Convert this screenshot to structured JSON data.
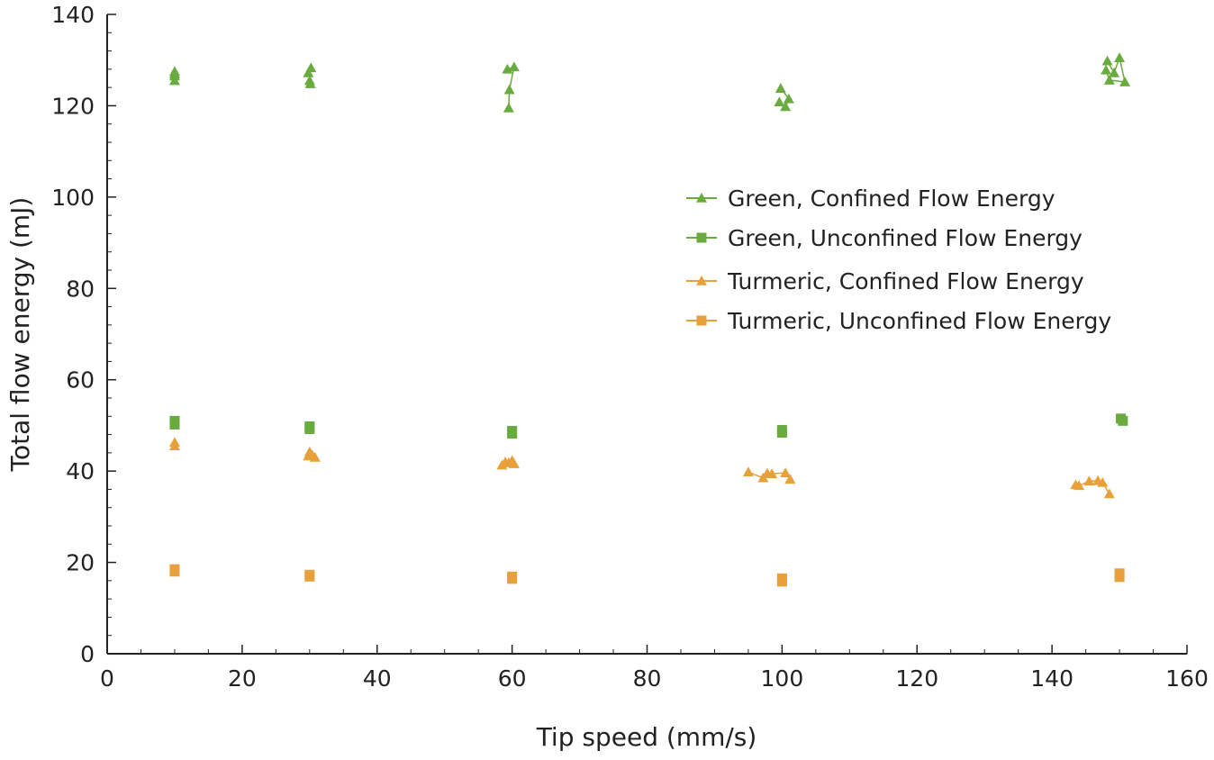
{
  "chart_data": {
    "type": "scatter",
    "title": "",
    "xlabel": "Tip speed (mm/s)",
    "ylabel": "Total flow energy (mJ)",
    "xlim": [
      0,
      160
    ],
    "ylim": [
      0,
      140
    ],
    "x_ticks": [
      "0",
      "20",
      "40",
      "60",
      "80",
      "100",
      "120",
      "140",
      "160"
    ],
    "y_ticks": [
      "0",
      "20",
      "40",
      "60",
      "80",
      "100",
      "120",
      "140"
    ],
    "grid": false,
    "legend_position": "right",
    "series": [
      {
        "name": "Green, Confined Flow Energy",
        "color": "#6aab3f",
        "marker": "triangle",
        "points": [
          [
            10,
            127.5
          ],
          [
            10,
            126.5
          ],
          [
            10,
            125.5
          ],
          [
            10,
            127.0
          ],
          [
            29.8,
            127.2
          ],
          [
            30.2,
            128.3
          ],
          [
            30.0,
            125.5
          ],
          [
            30.1,
            124.8
          ],
          [
            59.3,
            128.0
          ],
          [
            60.3,
            128.5
          ],
          [
            59.6,
            123.5
          ],
          [
            59.5,
            119.5
          ],
          [
            99.8,
            123.8
          ],
          [
            101.0,
            121.5
          ],
          [
            100.5,
            119.8
          ],
          [
            99.6,
            120.8
          ],
          [
            148.2,
            129.8
          ],
          [
            149.2,
            127.2
          ],
          [
            150.0,
            130.5
          ],
          [
            150.8,
            125.2
          ],
          [
            148.5,
            125.6
          ],
          [
            148.0,
            127.8
          ]
        ]
      },
      {
        "name": "Green, Unconfined Flow Energy",
        "color": "#6aab3f",
        "marker": "square",
        "points": [
          [
            10,
            51.0
          ],
          [
            10,
            50.2
          ],
          [
            30,
            49.8
          ],
          [
            30,
            49.2
          ],
          [
            60,
            48.8
          ],
          [
            60,
            48.2
          ],
          [
            100,
            49.0
          ],
          [
            100,
            48.4
          ],
          [
            150.2,
            51.5
          ],
          [
            150.5,
            51.0
          ]
        ]
      },
      {
        "name": "Turmeric, Confined Flow Energy",
        "color": "#e8a13a",
        "marker": "triangle",
        "points": [
          [
            10,
            46.3
          ],
          [
            10,
            45.5
          ],
          [
            29.8,
            43.3
          ],
          [
            30.0,
            44.2
          ],
          [
            30.4,
            43.5
          ],
          [
            30.8,
            43.0
          ],
          [
            58.5,
            41.3
          ],
          [
            59.0,
            42.0
          ],
          [
            59.5,
            41.8
          ],
          [
            60.0,
            42.3
          ],
          [
            60.3,
            41.6
          ],
          [
            95.0,
            39.8
          ],
          [
            97.2,
            38.5
          ],
          [
            97.8,
            39.5
          ],
          [
            98.5,
            39.4
          ],
          [
            100.5,
            39.6
          ],
          [
            101.2,
            38.2
          ],
          [
            143.5,
            37.0
          ],
          [
            144.0,
            36.8
          ],
          [
            145.5,
            37.8
          ],
          [
            146.8,
            37.9
          ],
          [
            147.5,
            37.5
          ],
          [
            148.5,
            35.0
          ]
        ]
      },
      {
        "name": "Turmeric, Unconfined Flow Energy",
        "color": "#e8a13a",
        "marker": "square",
        "points": [
          [
            10,
            18.5
          ],
          [
            10,
            18.0
          ],
          [
            30,
            17.3
          ],
          [
            30,
            16.9
          ],
          [
            60,
            16.9
          ],
          [
            60,
            16.4
          ],
          [
            100,
            16.5
          ],
          [
            100,
            15.8
          ],
          [
            150,
            17.6
          ],
          [
            150,
            16.8
          ]
        ]
      }
    ]
  }
}
